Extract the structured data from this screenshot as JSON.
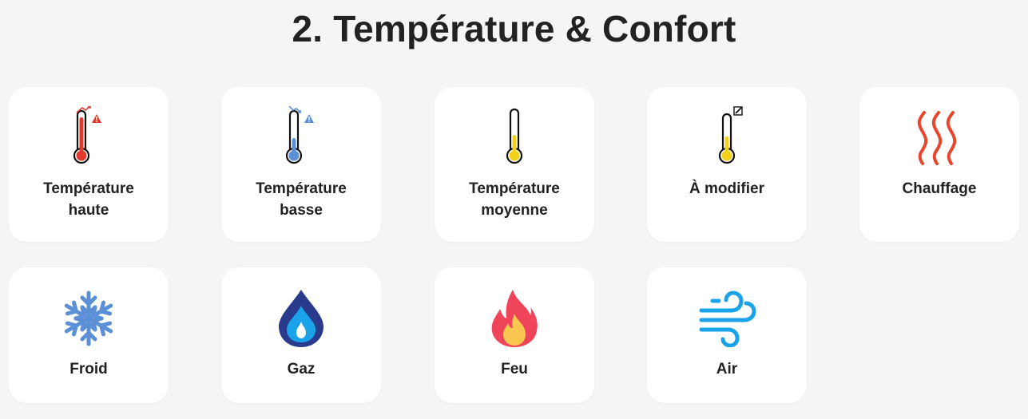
{
  "page": {
    "title": "2. Température & Confort"
  },
  "cards": [
    {
      "label": "Température\nhaute",
      "icon": "thermometer-high-icon",
      "color": "#e03a2f"
    },
    {
      "label": "Température\nbasse",
      "icon": "thermometer-low-icon",
      "color": "#5b8fd6"
    },
    {
      "label": "Température\nmoyenne",
      "icon": "thermometer-medium-icon",
      "color": "#f2d21b"
    },
    {
      "label": "À modifier",
      "icon": "thermometer-edit-icon",
      "color": "#f2d21b"
    },
    {
      "label": "Chauffage",
      "icon": "heating-waves-icon",
      "color": "#e8462b"
    },
    {
      "label": "Froid",
      "icon": "snowflake-icon",
      "color": "#5b8fd6"
    },
    {
      "label": "Gaz",
      "icon": "gas-drop-icon",
      "color": "#2a3a8c"
    },
    {
      "label": "Feu",
      "icon": "fire-icon",
      "color": "#f0445a"
    },
    {
      "label": "Air",
      "icon": "wind-icon",
      "color": "#1aa3e8"
    }
  ]
}
